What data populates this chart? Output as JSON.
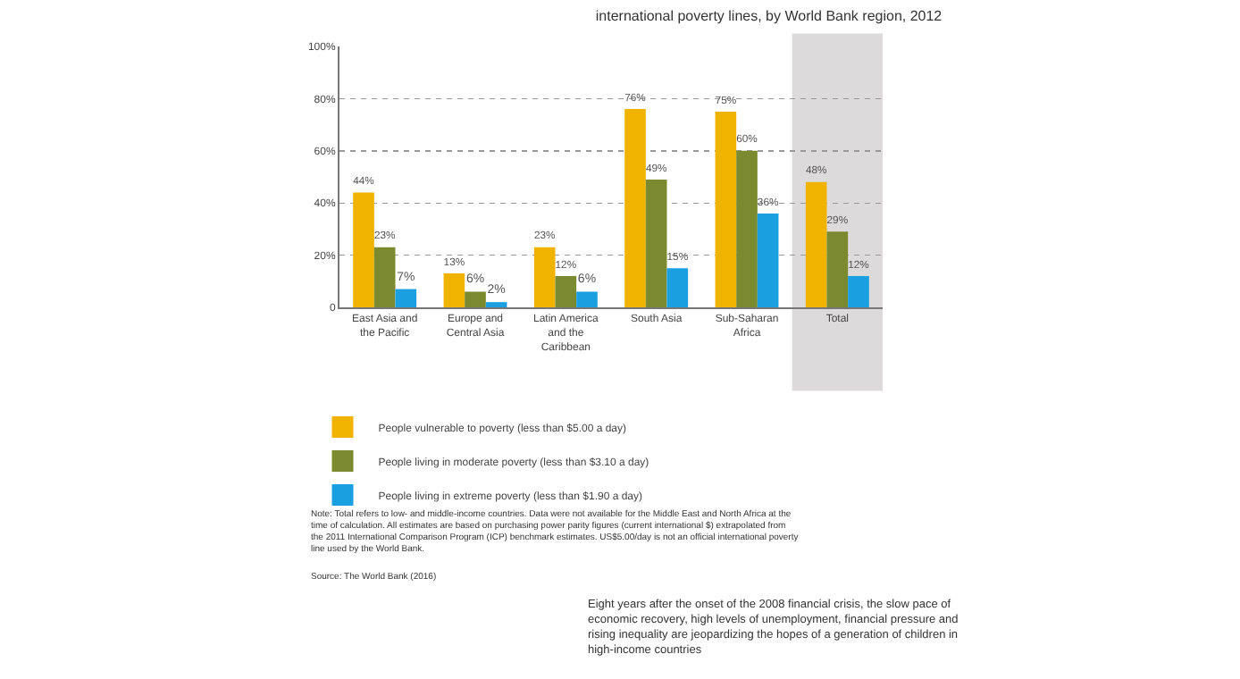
{
  "chart_data": {
    "type": "bar",
    "title": "international poverty lines, by World Bank region, 2012",
    "categories": [
      "East Asia and the Pacific",
      "Europe and Central Asia",
      "Latin America and the Caribbean",
      "South Asia",
      "Sub-Saharan Africa",
      "Total"
    ],
    "series": [
      {
        "name": "People vulnerable to poverty (less than $5.00 a day)",
        "color": "#f0b400",
        "values": [
          44,
          13,
          23,
          76,
          75,
          48
        ],
        "value_labels": [
          "44%",
          "13%",
          "23%",
          "76%",
          "75%",
          "48%"
        ]
      },
      {
        "name": "People living in moderate poverty (less than $3.10 a day)",
        "color": "#7b8a2e",
        "values": [
          23,
          6,
          12,
          49,
          60,
          29
        ],
        "value_labels": [
          "23%",
          "6%",
          "12%",
          "49%",
          "60%",
          "29%"
        ]
      },
      {
        "name": "People living in extreme poverty (less than $1.90 a day)",
        "color": "#1a9fe0",
        "values": [
          7,
          2,
          6,
          15,
          36,
          12
        ],
        "value_labels": [
          "7%",
          "2%",
          "6%",
          "15%",
          "36%",
          "12%"
        ]
      }
    ],
    "ylim": [
      0,
      100
    ],
    "yticks": [
      {
        "value": 0,
        "label": "0"
      },
      {
        "value": 20,
        "label": "20%"
      },
      {
        "value": 40,
        "label": "40%"
      },
      {
        "value": 60,
        "label": "60%"
      },
      {
        "value": 80,
        "label": "80%"
      },
      {
        "value": 100,
        "label": "100%"
      }
    ],
    "grid": "y",
    "legend": "bottom",
    "bands": [
      {
        "axis": "x",
        "from": "Total",
        "to": "Total",
        "color": "#dcdada"
      }
    ],
    "annotations": [
      "Note: Total refers to low- and middle-income countries. Data were not available for the Middle East and North Africa at the time of calculation. All estimates are based on purchasing power parity figures (current international $) extrapolated from the 2011 International Comparison Program (ICP) benchmark estimates. US$5.00/day is not an official international poverty line used by the World Bank.",
      "Source: The World Bank (2016)",
      "Eight years after the onset of the 2008 financial crisis, the slow pace of economic recovery, high levels of unemployment, financial pressure and rising inequality are jeopardizing the hopes of a generation of children in high-income countries"
    ]
  }
}
